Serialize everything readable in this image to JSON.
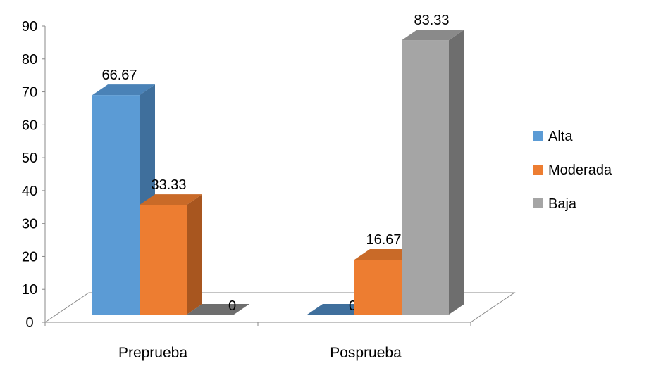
{
  "chart_data": {
    "type": "bar",
    "categories": [
      "Preprueba",
      "Posprueba"
    ],
    "series": [
      {
        "name": "Alta",
        "values": [
          66.67,
          0
        ],
        "labels": [
          "66.67",
          "0"
        ],
        "color": "#5b9bd5",
        "side_color": "#3f6f9c",
        "top_color": "#4a82b7"
      },
      {
        "name": "Moderada",
        "values": [
          33.33,
          16.67
        ],
        "labels": [
          "33.33",
          "16.67"
        ],
        "color": "#ed7d31",
        "side_color": "#a8561f",
        "top_color": "#c96a28"
      },
      {
        "name": "Baja",
        "values": [
          0,
          83.33
        ],
        "labels": [
          "0",
          "83.33"
        ],
        "color": "#a5a5a5",
        "side_color": "#6e6e6e",
        "top_color": "#8a8a8a"
      }
    ],
    "y_ticks": [
      "0",
      "10",
      "20",
      "30",
      "40",
      "50",
      "60",
      "70",
      "80",
      "90"
    ],
    "ylim": [
      0,
      90
    ],
    "legend_position": "right",
    "grid": false,
    "title": "",
    "xlabel": "",
    "ylabel": ""
  }
}
